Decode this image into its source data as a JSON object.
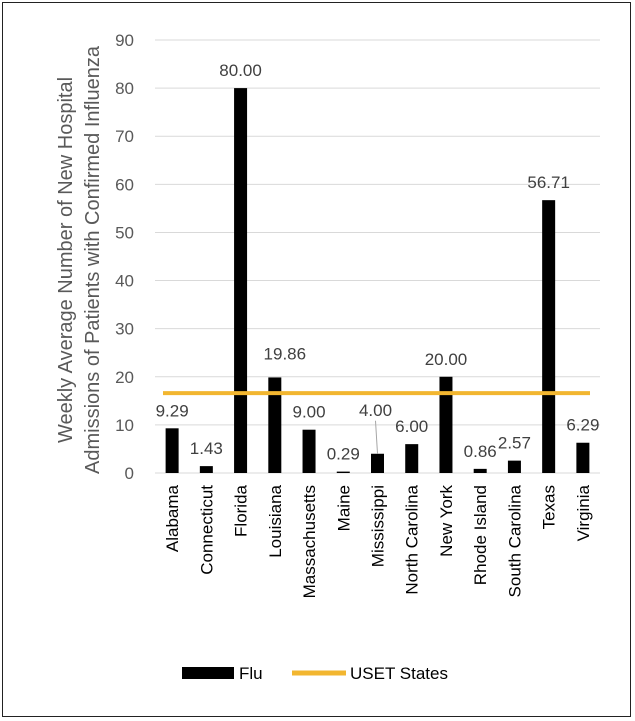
{
  "chart_data": {
    "type": "bar",
    "categories": [
      "Alabama",
      "Connecticut",
      "Florida",
      "Louisiana",
      "Massachusetts",
      "Maine",
      "Mississippi",
      "North Carolina",
      "New York",
      "Rhode Island",
      "South Carolina",
      "Texas",
      "Virginia"
    ],
    "series": [
      {
        "name": "Flu",
        "type": "bar",
        "color": "#000000",
        "values": [
          9.29,
          1.43,
          80.0,
          19.86,
          9.0,
          0.29,
          4.0,
          6.0,
          20.0,
          0.86,
          2.57,
          56.71,
          6.29
        ],
        "labels": [
          "9.29",
          "1.43",
          "80.00",
          "19.86",
          "9.00",
          "0.29",
          "4.00",
          "6.00",
          "20.00",
          "0.86",
          "2.57",
          "56.71",
          "6.29"
        ]
      },
      {
        "name": "USET States",
        "type": "line",
        "color": "#F2B630",
        "value": 16.6
      }
    ],
    "ylabel_line1": "Weekly Average Number of New Hospital",
    "ylabel_line2": "Admissions of Patients with Confirmed Influenza",
    "ylim": [
      0,
      90
    ],
    "yticks": [
      0,
      10,
      20,
      30,
      40,
      50,
      60,
      70,
      80,
      90
    ],
    "grid": true,
    "legend": "bottom"
  }
}
